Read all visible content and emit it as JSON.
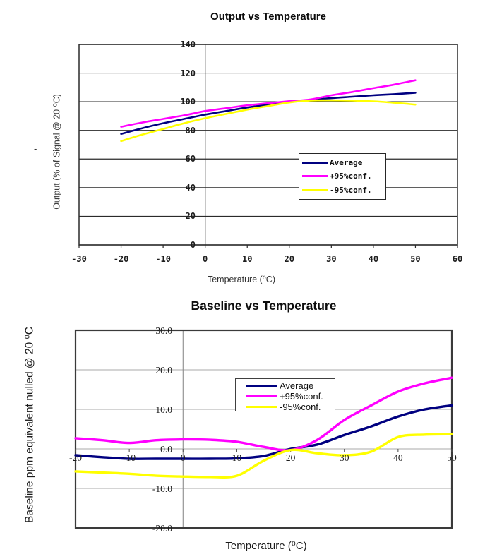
{
  "artifacts": {
    "stray_dash": "-"
  },
  "colors": {
    "average": "#000080",
    "plus95": "#ff00ff",
    "minus95": "#ffff00",
    "top_grid": "#2a2a2a",
    "bottom_grid": "#a8a8a8",
    "bottom_frame": "#3a3a3a",
    "bottom_axis": "#8c8c8c"
  },
  "chart_data": [
    {
      "type": "line",
      "title": "Output vs Temperature",
      "xlabel": "Temperature (⁰C)",
      "ylabel": "Output (% of Signal @ 20 ⁰C)",
      "xlim": [
        -30,
        60
      ],
      "ylim": [
        0,
        140
      ],
      "grid": "horizontal",
      "legend_position": "inside-middle-right",
      "x_ticks": [
        -30,
        -20,
        -10,
        0,
        10,
        20,
        30,
        40,
        50,
        60
      ],
      "x_tick_labels": [
        "-30",
        "-20",
        "-10",
        "0",
        "10",
        "20",
        "30",
        "40",
        "50",
        "60"
      ],
      "y_ticks": [
        0,
        20,
        40,
        60,
        80,
        100,
        120,
        140
      ],
      "y_tick_labels": [
        "0",
        "20",
        "40",
        "60",
        "80",
        "100",
        "120",
        "140"
      ],
      "x": [
        -20,
        -15,
        -10,
        -5,
        0,
        5,
        10,
        15,
        20,
        25,
        30,
        35,
        40,
        45,
        50
      ],
      "series": [
        {
          "name": "Average",
          "color": "#000080",
          "values": [
            77.5,
            81.5,
            85,
            88,
            91,
            93.5,
            96,
            98,
            100,
            101.3,
            102.5,
            103.5,
            104.5,
            105.3,
            106.3
          ]
        },
        {
          "name": "+95%conf.",
          "color": "#ff00ff",
          "values": [
            82.5,
            85.5,
            88,
            90.5,
            93.5,
            95.5,
            97.5,
            99,
            100.4,
            101.6,
            104.5,
            106.8,
            109.5,
            112,
            115
          ]
        },
        {
          "name": "-95%conf.",
          "color": "#ffff00",
          "values": [
            72.5,
            77,
            81,
            85,
            88.5,
            91.5,
            94.5,
            97,
            99.5,
            100.8,
            101,
            100.8,
            100.3,
            99.3,
            98
          ]
        }
      ]
    },
    {
      "type": "line",
      "title": "Baseline vs Temperature",
      "xlabel": "Temperature (⁰C)",
      "ylabel": "Baseline ppm equivalent nulled @ 20 ⁰C",
      "xlim": [
        -20,
        50
      ],
      "ylim": [
        -20,
        30
      ],
      "grid": "horizontal",
      "legend_position": "inside-top-middle",
      "x_axis_at_y": 0,
      "x_ticks": [
        -20,
        -10,
        0,
        10,
        20,
        30,
        40,
        50
      ],
      "x_tick_labels": [
        "-20",
        "-10",
        "0",
        "10",
        "20",
        "30",
        "40",
        "50"
      ],
      "y_ticks": [
        30,
        20,
        10,
        0,
        -10,
        -20
      ],
      "y_tick_labels": [
        "30.0",
        "20.0",
        "10.0",
        "0.0",
        "-10.0",
        "-20.0"
      ],
      "x": [
        -20,
        -15,
        -10,
        -5,
        0,
        5,
        10,
        15,
        20,
        25,
        30,
        35,
        40,
        45,
        50
      ],
      "series": [
        {
          "name": "Average",
          "color": "#000080",
          "values": [
            -1.6,
            -2.1,
            -2.5,
            -2.5,
            -2.5,
            -2.5,
            -2.4,
            -1.8,
            0,
            1.1,
            3.5,
            5.7,
            8.2,
            10,
            11
          ]
        },
        {
          "name": "+95%conf.",
          "color": "#ff00ff",
          "values": [
            2.7,
            2.2,
            1.5,
            2.2,
            2.4,
            2.3,
            1.8,
            0.5,
            -0.3,
            2.3,
            7.3,
            11,
            14.5,
            16.6,
            18
          ]
        },
        {
          "name": "-95%conf.",
          "color": "#ffff00",
          "values": [
            -5.7,
            -6,
            -6.3,
            -6.8,
            -7,
            -7.1,
            -6.8,
            -3,
            -0.3,
            -1.1,
            -1.6,
            -0.7,
            3,
            3.6,
            3.7
          ]
        }
      ]
    }
  ]
}
